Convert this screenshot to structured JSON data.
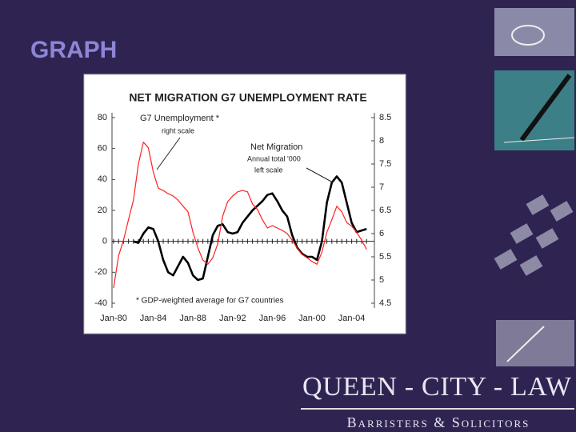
{
  "slide": {
    "title": "GRAPH",
    "logo": {
      "name": "QUEEN - CITY - LAW",
      "tagline": "Barristers & Solicitors"
    }
  },
  "chart_data": {
    "type": "line",
    "title": "NET MIGRATION G7 UNEMPLOYMENT RATE",
    "x": [
      "Jan-80",
      "Jul-80",
      "Jan-81",
      "Jul-81",
      "Jan-82",
      "Jul-82",
      "Jan-83",
      "Jul-83",
      "Jan-84",
      "Jul-84",
      "Jan-85",
      "Jul-85",
      "Jan-86",
      "Jul-86",
      "Jan-87",
      "Jul-87",
      "Jan-88",
      "Jul-88",
      "Jan-89",
      "Jul-89",
      "Jan-90",
      "Jul-90",
      "Jan-91",
      "Jul-91",
      "Jan-92",
      "Jul-92",
      "Jan-93",
      "Jul-93",
      "Jan-94",
      "Jul-94",
      "Jan-95",
      "Jul-95",
      "Jan-96",
      "Jul-96",
      "Jan-97",
      "Jul-97",
      "Jan-98",
      "Jul-98",
      "Jan-99",
      "Jul-99",
      "Jan-00",
      "Jul-00",
      "Jan-01",
      "Jul-01",
      "Jan-02",
      "Jul-02",
      "Jan-03",
      "Jul-03",
      "Jan-04",
      "Jul-04",
      "Jan-05",
      "Jul-05"
    ],
    "xticks": [
      "Jan-80",
      "Jan-84",
      "Jan-88",
      "Jan-92",
      "Jan-96",
      "Jan-00",
      "Jan-04"
    ],
    "series": [
      {
        "name": "Net Migration",
        "color": "#000000",
        "axis": "y",
        "values": [
          null,
          null,
          null,
          null,
          0,
          -1,
          5,
          9,
          8,
          0,
          -12,
          -20,
          -22,
          -16,
          -10,
          -14,
          -22,
          -25,
          -24,
          -10,
          4,
          10,
          11,
          6,
          5,
          6,
          12,
          16,
          20,
          23,
          26,
          30,
          31,
          26,
          20,
          16,
          4,
          -4,
          -8,
          -10,
          -10,
          -12,
          0,
          25,
          38,
          42,
          38,
          25,
          12,
          6,
          7,
          8
        ]
      },
      {
        "name": "G7 Unemployment *",
        "color": "#ff2020",
        "axis": "y2",
        "values": [
          4.83,
          5.52,
          5.86,
          6.3,
          6.72,
          7.5,
          7.97,
          7.85,
          7.33,
          6.98,
          6.93,
          6.86,
          6.81,
          6.72,
          6.59,
          6.47,
          6.03,
          5.69,
          5.43,
          5.34,
          5.48,
          5.78,
          6.38,
          6.69,
          6.81,
          6.9,
          6.93,
          6.9,
          6.64,
          6.52,
          6.3,
          6.12,
          6.17,
          6.12,
          6.07,
          6,
          5.86,
          5.69,
          5.55,
          5.48,
          5.4,
          5.34,
          5.6,
          6.03,
          6.3,
          6.59,
          6.47,
          6.24,
          6.16,
          6.03,
          5.86,
          5.66
        ]
      }
    ],
    "annotations": [
      "right scale",
      "Annual total '000",
      "left scale",
      "* GDP-weighted average for G7 countries"
    ],
    "ylim": [
      -40,
      80
    ],
    "yticks": [
      -40,
      -20,
      0,
      20,
      40,
      60,
      80
    ],
    "y2lim": [
      4.5,
      8.5
    ],
    "y2ticks": [
      4.5,
      5,
      5.5,
      6,
      6.5,
      7,
      7.5,
      8,
      8.5
    ]
  }
}
